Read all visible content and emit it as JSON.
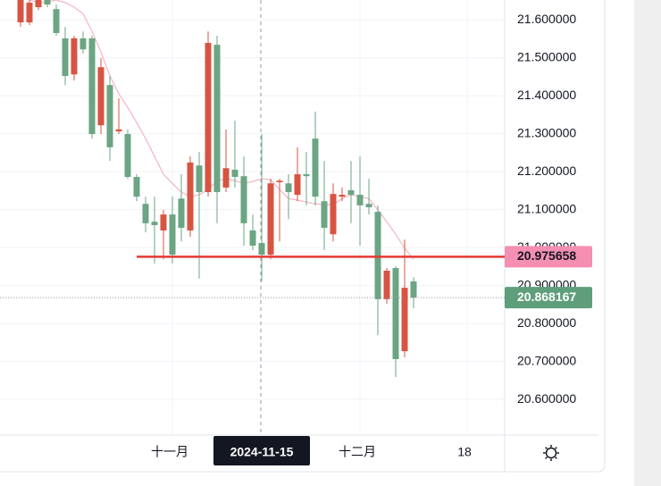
{
  "chart_data": {
    "type": "candlestick",
    "categories": [
      null,
      null,
      null,
      null,
      null,
      null,
      null,
      null,
      null,
      null,
      null,
      null,
      null,
      null,
      null,
      null,
      null,
      "十一月",
      null,
      null,
      null,
      null,
      null,
      null,
      null,
      null,
      null,
      "2024-11-15",
      null,
      null,
      null,
      null,
      null,
      null,
      null,
      null,
      null,
      null,
      "十二月",
      null,
      null,
      null,
      null,
      null,
      null,
      null,
      null,
      null,
      null,
      null,
      "18"
    ],
    "open": [
      21.652,
      21.645,
      21.652,
      21.64,
      21.565,
      21.452,
      21.551,
      21.522,
      21.299,
      21.475,
      21.264,
      21.311,
      21.186,
      21.134,
      21.064,
      21.059,
      21.087,
      20.981,
      21.052,
      21.224,
      21.146,
      21.539,
      21.146,
      21.209,
      21.186,
      21.064,
      21.005,
      20.981,
      21.169,
      21.176,
      21.146,
      21.193,
      21.188,
      21.134,
      21.052,
      21.141,
      21.139,
      21.139,
      21.111,
      21.106,
      20.864,
      20.939,
      20.706,
      20.894,
      20.868,
      null,
      null,
      null,
      null,
      null,
      null
    ],
    "high": [
      21.66,
      21.655,
      21.66,
      21.66,
      21.64,
      21.581,
      21.558,
      21.569,
      21.558,
      21.499,
      21.452,
      21.393,
      21.311,
      21.193,
      21.134,
      21.134,
      21.099,
      21.134,
      21.193,
      21.24,
      21.252,
      21.569,
      21.558,
      21.311,
      21.334,
      21.24,
      21.087,
      21.299,
      21.181,
      21.181,
      21.193,
      21.264,
      21.252,
      21.358,
      21.228,
      21.169,
      21.158,
      21.228,
      21.24,
      21.181,
      21.111,
      20.946,
      20.951,
      21.021,
      20.922,
      null,
      null,
      null,
      null,
      null,
      null
    ],
    "low": [
      21.581,
      21.586,
      21.625,
      21.633,
      21.558,
      21.428,
      21.44,
      21.511,
      21.287,
      21.299,
      21.228,
      21.299,
      21.181,
      21.122,
      21.04,
      20.958,
      20.969,
      20.958,
      21.016,
      21.028,
      20.918,
      21.134,
      21.064,
      21.146,
      21.158,
      21.005,
      20.993,
      20.911,
      20.969,
      21.016,
      21.075,
      21.122,
      21.111,
      21.111,
      20.993,
      21.016,
      21.122,
      21.064,
      21.005,
      21.087,
      20.769,
      20.852,
      20.659,
      20.711,
      20.84,
      null,
      null,
      null,
      null,
      null,
      null
    ],
    "close": [
      21.593,
      21.593,
      21.633,
      21.652,
      21.628,
      21.551,
      21.456,
      21.551,
      21.551,
      21.322,
      21.428,
      21.306,
      21.299,
      21.186,
      21.115,
      21.068,
      21.045,
      21.087,
      21.129,
      21.045,
      21.216,
      21.146,
      21.534,
      21.158,
      21.205,
      21.188,
      21.045,
      21.012,
      20.981,
      21.172,
      21.169,
      21.139,
      21.193,
      21.287,
      21.122,
      21.035,
      21.134,
      21.151,
      21.139,
      21.115,
      21.094,
      20.864,
      20.946,
      20.727,
      20.911,
      null,
      null,
      null,
      null,
      null,
      null
    ],
    "moving_average": {
      "color": "#f4b9c6",
      "values": [
        21.659,
        21.652,
        21.645,
        21.647,
        21.652,
        21.645,
        21.633,
        21.616,
        21.569,
        21.515,
        21.452,
        21.405,
        21.369,
        21.329,
        21.287,
        21.24,
        21.193,
        21.169,
        21.146,
        21.134,
        21.139,
        21.153,
        21.176,
        21.181,
        21.176,
        21.169,
        21.174,
        21.181,
        21.179,
        21.153,
        21.129,
        21.125,
        21.12,
        21.115,
        21.113,
        21.113,
        21.129,
        21.139,
        21.134,
        21.129,
        21.099,
        21.068,
        21.035,
        20.998,
        20.969,
        null,
        null,
        null,
        null,
        null,
        null
      ]
    },
    "up_color": "#6ba583",
    "down_color": "#d75442",
    "ylim": [
      20.506,
      21.652
    ],
    "yticks": [
      {
        "value": 20.6,
        "label": "20.600000"
      },
      {
        "value": 20.7,
        "label": "20.700000"
      },
      {
        "value": 20.8,
        "label": "20.800000"
      },
      {
        "value": 20.9,
        "label": "20.900000"
      },
      {
        "value": 21.0,
        "label": "21.000000"
      },
      {
        "value": 21.1,
        "label": "21.100000"
      },
      {
        "value": 21.2,
        "label": "21.200000"
      },
      {
        "value": 21.3,
        "label": "21.300000"
      },
      {
        "value": 21.4,
        "label": "21.400000"
      },
      {
        "value": 21.5,
        "label": "21.500000"
      },
      {
        "value": 21.6,
        "label": "21.600000"
      }
    ],
    "grid": true,
    "crosshair_index": 27,
    "horizontal_line": {
      "value": 20.975658,
      "color": "#e53935",
      "label_color": "#f48fb1"
    },
    "last_price": {
      "value": 20.868167,
      "color": "#5f9e7a"
    }
  }
}
